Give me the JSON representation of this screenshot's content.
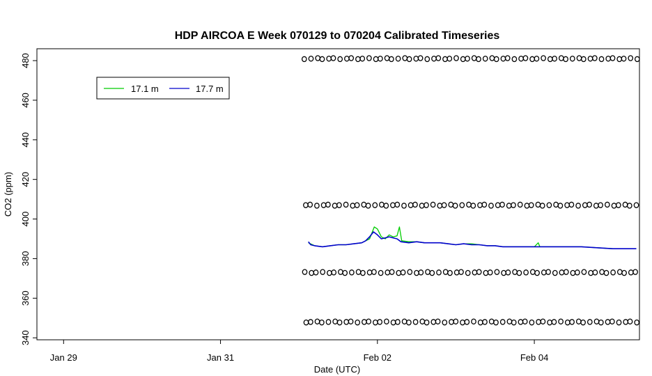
{
  "chart_data": {
    "type": "line",
    "title": "HDP AIRCOA E  Week 070129 to 070204  Calibrated Timeseries",
    "xlabel": "Date (UTC)",
    "ylabel": "CO2 (ppm)",
    "x_tick_labels": [
      "Jan 29",
      "Jan 31",
      "Feb 02",
      "Feb 04"
    ],
    "x_tick_days": [
      0,
      2,
      4,
      6
    ],
    "y_ticks": [
      340,
      360,
      380,
      400,
      420,
      440,
      460,
      480
    ],
    "xlim_days": [
      -0.34,
      7.34
    ],
    "ylim": [
      339,
      486
    ],
    "grid": false,
    "legend_position": "top-left",
    "series": [
      {
        "name": "17.1 m",
        "color": "#00cc00",
        "points": [
          [
            3.12,
            388
          ],
          [
            3.2,
            386.5
          ],
          [
            3.3,
            386
          ],
          [
            3.4,
            386.5
          ],
          [
            3.5,
            387
          ],
          [
            3.6,
            387
          ],
          [
            3.7,
            387.5
          ],
          [
            3.8,
            388
          ],
          [
            3.9,
            390
          ],
          [
            3.96,
            396
          ],
          [
            4.0,
            395
          ],
          [
            4.05,
            391
          ],
          [
            4.1,
            390
          ],
          [
            4.15,
            392
          ],
          [
            4.2,
            391
          ],
          [
            4.25,
            391.5
          ],
          [
            4.28,
            396
          ],
          [
            4.31,
            389
          ],
          [
            4.4,
            388.5
          ],
          [
            4.5,
            388.5
          ],
          [
            4.6,
            388
          ],
          [
            4.7,
            388
          ],
          [
            4.8,
            388
          ],
          [
            4.9,
            387.5
          ],
          [
            5.0,
            387
          ],
          [
            5.1,
            387.5
          ],
          [
            5.2,
            387.5
          ],
          [
            5.3,
            387
          ],
          [
            5.4,
            386.5
          ],
          [
            5.5,
            386.5
          ],
          [
            5.6,
            386
          ],
          [
            5.8,
            386
          ],
          [
            6.0,
            386
          ],
          [
            6.05,
            388
          ],
          [
            6.07,
            386
          ],
          [
            6.2,
            386
          ],
          [
            6.4,
            386
          ],
          [
            6.6,
            386
          ],
          [
            6.8,
            385.5
          ],
          [
            7.0,
            385
          ],
          [
            7.2,
            385
          ],
          [
            7.3,
            385
          ]
        ]
      },
      {
        "name": "17.7 m",
        "color": "#0000cc",
        "points": [
          [
            3.12,
            388.5
          ],
          [
            3.15,
            387
          ],
          [
            3.2,
            386.5
          ],
          [
            3.3,
            386
          ],
          [
            3.4,
            386.5
          ],
          [
            3.5,
            387
          ],
          [
            3.6,
            387
          ],
          [
            3.7,
            387.5
          ],
          [
            3.8,
            388
          ],
          [
            3.85,
            389
          ],
          [
            3.9,
            391
          ],
          [
            3.95,
            393.5
          ],
          [
            4.0,
            392
          ],
          [
            4.05,
            390
          ],
          [
            4.1,
            390.5
          ],
          [
            4.15,
            391
          ],
          [
            4.2,
            390.5
          ],
          [
            4.25,
            390
          ],
          [
            4.3,
            388.5
          ],
          [
            4.4,
            388
          ],
          [
            4.5,
            388.5
          ],
          [
            4.6,
            388
          ],
          [
            4.7,
            388
          ],
          [
            4.8,
            388
          ],
          [
            4.9,
            387.5
          ],
          [
            5.0,
            387
          ],
          [
            5.1,
            387.5
          ],
          [
            5.2,
            387
          ],
          [
            5.3,
            387
          ],
          [
            5.4,
            386.5
          ],
          [
            5.5,
            386.5
          ],
          [
            5.6,
            386
          ],
          [
            5.8,
            386
          ],
          [
            6.0,
            386
          ],
          [
            6.2,
            386
          ],
          [
            6.4,
            386
          ],
          [
            6.6,
            386
          ],
          [
            6.8,
            385.5
          ],
          [
            7.0,
            385
          ],
          [
            7.2,
            385
          ],
          [
            7.3,
            385
          ]
        ]
      }
    ],
    "calibration_points": {
      "x_start": 3.08,
      "x_end": 7.3,
      "levels": [
        481,
        407,
        373,
        348
      ]
    }
  }
}
